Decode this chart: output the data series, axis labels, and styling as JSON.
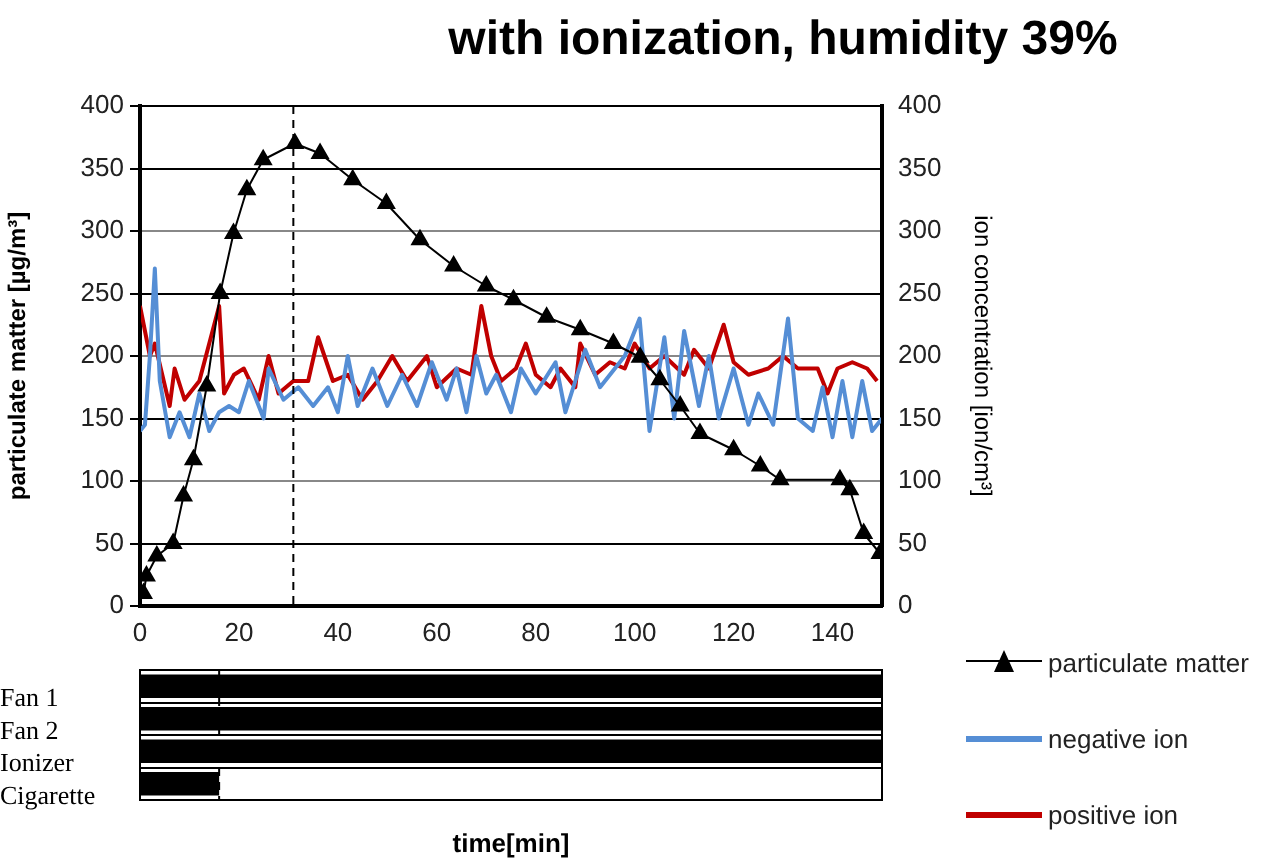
{
  "chart_data": [
    {
      "type": "line",
      "title": "with ionization, humidity 39%",
      "ylabel": "particulate matter [µg/m³]",
      "y2label": "ion concentration [ion/cm³]",
      "xlim": [
        0,
        150
      ],
      "xticks": [
        0,
        20,
        40,
        60,
        80,
        100,
        120,
        140
      ],
      "ylim": [
        0,
        400
      ],
      "yticks": [
        0,
        50,
        100,
        150,
        200,
        250,
        300,
        350,
        400
      ],
      "y2lim": [
        0,
        400
      ],
      "y2ticks": [
        0,
        50,
        100,
        150,
        200,
        250,
        300,
        350,
        400
      ],
      "grid": "y",
      "legend": "bottom right",
      "ref_lines": [
        {
          "axis": "x",
          "value": 31,
          "label": null,
          "color": "#000000",
          "line_style": "dashed"
        }
      ],
      "series": [
        {
          "name": "particulate matter",
          "color": "#000000",
          "marker": "triangle",
          "x": [
            0.7,
            1.3,
            3.4,
            6.7,
            8.8,
            10.8,
            13.5,
            16.2,
            18.9,
            21.6,
            24.9,
            31.3,
            36.4,
            43,
            49.8,
            56.6,
            63.4,
            70,
            75.5,
            82.2,
            89,
            95.7,
            101.1,
            105.1,
            109.2,
            113.2,
            120,
            125.4,
            129.4,
            141.5,
            143.5,
            146.3,
            149.6
          ],
          "values": [
            10,
            24,
            40,
            50,
            88,
            117,
            176,
            250,
            298,
            333,
            357,
            370,
            362,
            341,
            322,
            293,
            272,
            256,
            245,
            231,
            221,
            210,
            199,
            181,
            160,
            138,
            125,
            112,
            101,
            101,
            93,
            58,
            42
          ]
        },
        {
          "name": "negative ion",
          "color": "#558ed5",
          "axis": "y2",
          "x": [
            0,
            1,
            2,
            3,
            4,
            6,
            8,
            10,
            12,
            14,
            16,
            18,
            20,
            22,
            25,
            26,
            29,
            32,
            35,
            38,
            40,
            42,
            44,
            47,
            50,
            53,
            56,
            59,
            62,
            64,
            66,
            68,
            70,
            72,
            75,
            77,
            80,
            84,
            86,
            88,
            90,
            93,
            96,
            98,
            101,
            103,
            106,
            108,
            110,
            113,
            115,
            117,
            120,
            123,
            125,
            128,
            131,
            133,
            136,
            138,
            140,
            142,
            144,
            146,
            148,
            150
          ],
          "values": [
            140,
            145,
            200,
            270,
            180,
            135,
            155,
            135,
            170,
            140,
            155,
            160,
            155,
            180,
            150,
            190,
            165,
            175,
            160,
            175,
            155,
            200,
            160,
            190,
            160,
            185,
            160,
            195,
            165,
            190,
            155,
            200,
            170,
            185,
            155,
            190,
            170,
            195,
            155,
            180,
            205,
            175,
            190,
            200,
            230,
            140,
            215,
            150,
            220,
            160,
            200,
            150,
            190,
            145,
            170,
            145,
            230,
            150,
            140,
            175,
            135,
            180,
            135,
            180,
            140,
            150
          ]
        },
        {
          "name": "positive ion",
          "color": "#c00000",
          "axis": "y2",
          "x": [
            0,
            2,
            3,
            6,
            7,
            9,
            12,
            16,
            17,
            19,
            21,
            24,
            26,
            28,
            31,
            34,
            36,
            39,
            42,
            45,
            48,
            51,
            54,
            58,
            60,
            64,
            67,
            69,
            71,
            73,
            76,
            78,
            80,
            83,
            85,
            88,
            89,
            92,
            95,
            98,
            100,
            103,
            106,
            110,
            112,
            115,
            118,
            120,
            123,
            127,
            130,
            133,
            137,
            139,
            141,
            144,
            147,
            149
          ],
          "values": [
            240,
            200,
            210,
            160,
            190,
            165,
            180,
            240,
            170,
            185,
            190,
            165,
            200,
            170,
            180,
            180,
            215,
            180,
            185,
            165,
            180,
            200,
            180,
            200,
            175,
            190,
            185,
            240,
            200,
            180,
            190,
            210,
            185,
            175,
            190,
            175,
            210,
            185,
            195,
            190,
            210,
            190,
            200,
            185,
            205,
            190,
            225,
            195,
            185,
            190,
            200,
            190,
            190,
            170,
            190,
            195,
            190,
            180
          ]
        }
      ]
    },
    {
      "type": "bar",
      "orientation": "horizontal",
      "xlabel": "time[min]",
      "categories": [
        "Fan 1",
        "Fan 2",
        "Ionizer",
        "Cigarette"
      ],
      "base": [
        0,
        0,
        0,
        0
      ],
      "values": [
        150,
        150,
        150,
        16
      ],
      "color": "#000000",
      "xlim": [
        0,
        150
      ],
      "tick_labels": "y",
      "grid": "y",
      "ref_lines": [
        {
          "axis": "x",
          "value": 16,
          "label": null,
          "color": "#000000",
          "line_style": "dashed"
        }
      ]
    }
  ]
}
